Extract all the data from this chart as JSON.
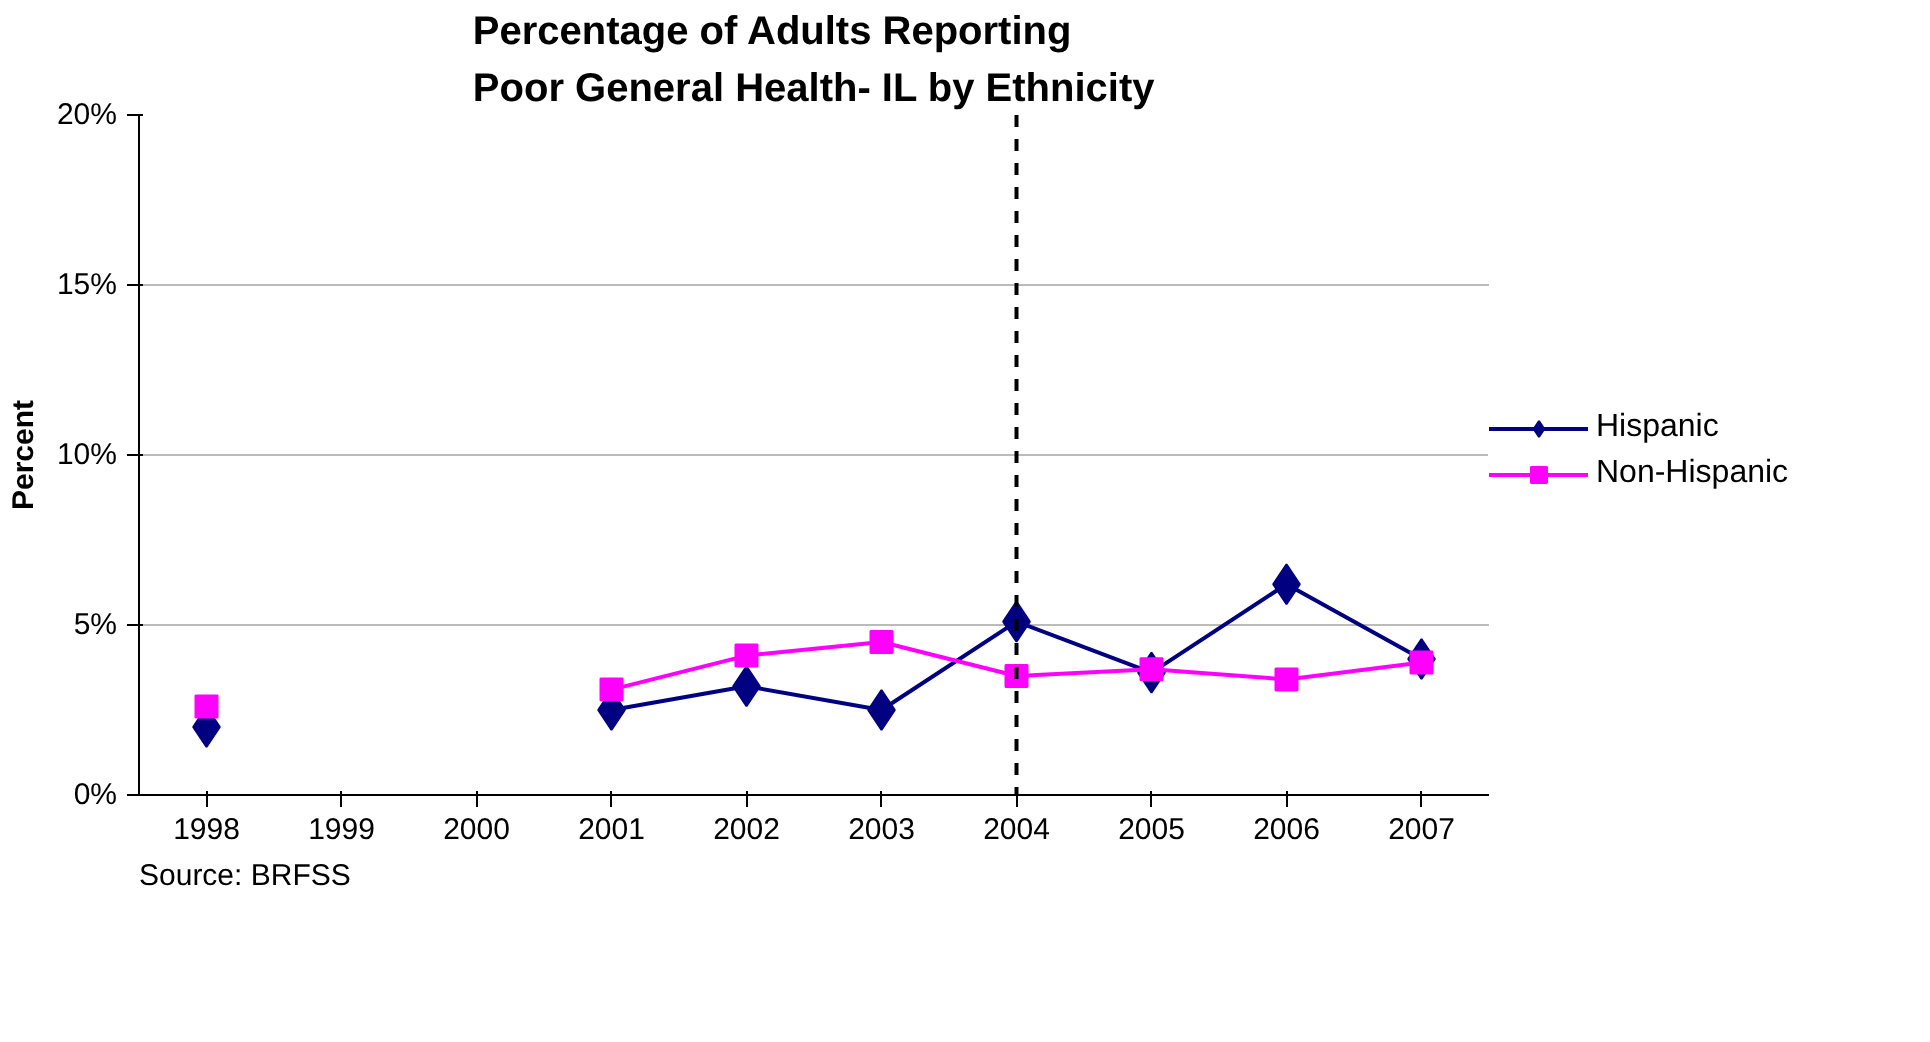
{
  "chart_data": {
    "type": "line",
    "title": "Percentage of Adults Reporting\nPoor General Health- IL by Ethnicity",
    "ylabel": "Percent",
    "categories": [
      "1998",
      "1999",
      "2000",
      "2001",
      "2002",
      "2003",
      "2004",
      "2005",
      "2006",
      "2007"
    ],
    "series": [
      {
        "name": "Hispanic",
        "color": "#000080",
        "marker": "diamond",
        "values": [
          2.0,
          null,
          null,
          2.5,
          3.2,
          2.5,
          5.1,
          3.6,
          6.2,
          4.0
        ]
      },
      {
        "name": "Non-Hispanic",
        "color": "#ff00ff",
        "marker": "square",
        "values": [
          2.6,
          null,
          null,
          3.1,
          4.1,
          4.5,
          3.5,
          3.7,
          3.4,
          3.9
        ]
      }
    ],
    "ylim": [
      0,
      20
    ],
    "yticks": [
      {
        "value": 0,
        "label": "0%"
      },
      {
        "value": 5,
        "label": "5%"
      },
      {
        "value": 10,
        "label": "10%"
      },
      {
        "value": 15,
        "label": "15%"
      },
      {
        "value": 20,
        "label": "20%"
      }
    ],
    "ref_lines": [
      {
        "axis": "x",
        "value": "2004",
        "line_style": "dashed",
        "color": "#000000"
      }
    ],
    "grid": "y",
    "legend": "right",
    "line_style": "solid",
    "annotations": [
      "Source: BRFSS"
    ]
  }
}
